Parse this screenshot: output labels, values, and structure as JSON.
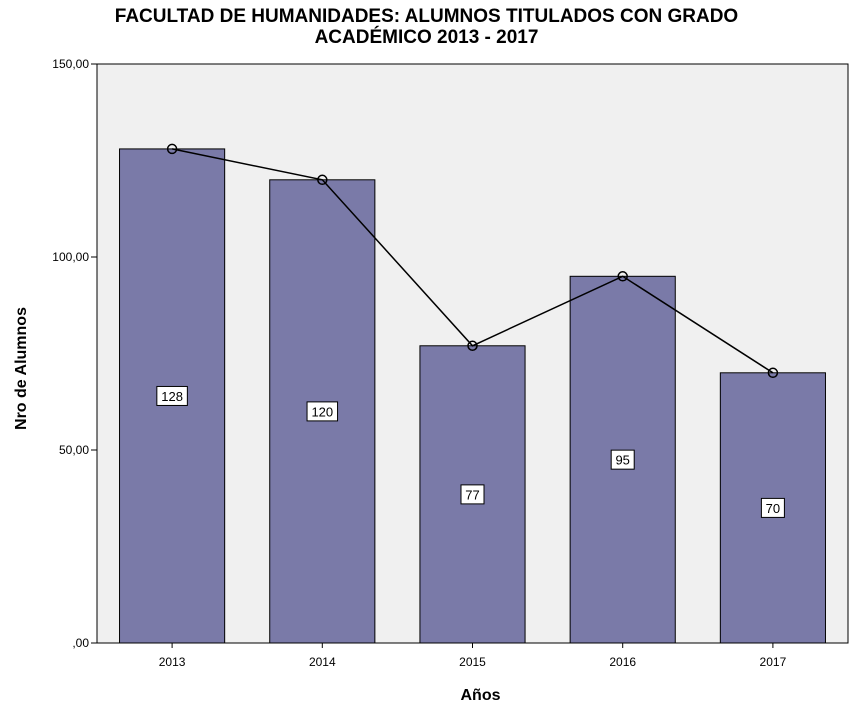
{
  "title_line1": "FACULTAD DE HUMANIDADES: ALUMNOS TITULADOS CON GRADO",
  "title_line2": "ACADÉMICO 2013 - 2017",
  "colors": {
    "plot_background": "#f0f0f0",
    "bar_fill": "#7a7aa8",
    "bar_stroke": "#000000",
    "line": "#000000"
  },
  "chart_data": {
    "type": "bar",
    "title": "FACULTAD DE HUMANIDADES: ALUMNOS TITULADOS CON GRADO ACADÉMICO 2013 - 2017",
    "xlabel": "Años",
    "ylabel": "Nro de Alumnos",
    "categories": [
      "2013",
      "2014",
      "2015",
      "2016",
      "2017"
    ],
    "values": [
      128,
      120,
      77,
      95,
      70
    ],
    "data_labels": [
      "128",
      "120",
      "77",
      "95",
      "70"
    ],
    "overlay": "line with circle markers through bar tops",
    "ylim": [
      0,
      150
    ],
    "yticks": [
      0,
      50,
      100,
      150
    ],
    "ytick_labels": [
      ",00",
      "50,00",
      "100,00",
      "150,00"
    ],
    "grid": false,
    "legend": "none"
  }
}
